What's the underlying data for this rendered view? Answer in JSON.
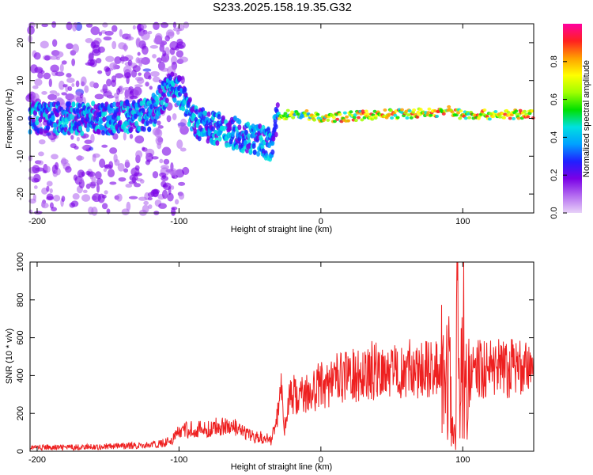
{
  "title": "S233.2025.158.19.35.G32",
  "chart_data": [
    {
      "type": "heatmap",
      "xlabel": "Height of straight line (km)",
      "ylabel": "Frequency (Hz)",
      "xlim": [
        -205,
        150
      ],
      "ylim": [
        -25,
        25
      ],
      "xticks": [
        -200,
        -100,
        0,
        100
      ],
      "yticks": [
        -20,
        -10,
        0,
        10,
        20
      ],
      "colorbar": {
        "label": "Normalized spectral amplitude",
        "range": [
          0,
          1
        ],
        "ticks": [
          "0.0",
          "0.2",
          "0.4",
          "0.6",
          "0.8"
        ],
        "colors": [
          "#e8d2f8",
          "#b46cf0",
          "#7a00e6",
          "#2020ff",
          "#00a0ff",
          "#00e0e0",
          "#00e000",
          "#a0ff00",
          "#ffff00",
          "#ffa000",
          "#ff2020",
          "#ff00a0"
        ]
      },
      "ridge": [
        {
          "x": -205,
          "y": 0
        },
        {
          "x": -150,
          "y": 0
        },
        {
          "x": -120,
          "y": 1
        },
        {
          "x": -105,
          "y": 9
        },
        {
          "x": -95,
          "y": 5
        },
        {
          "x": -90,
          "y": -1
        },
        {
          "x": -70,
          "y": -3
        },
        {
          "x": -50,
          "y": -5
        },
        {
          "x": -35,
          "y": -7
        },
        {
          "x": -30,
          "y": 1
        },
        {
          "x": -10,
          "y": 1
        },
        {
          "x": 0,
          "y": 0
        },
        {
          "x": 40,
          "y": 1
        },
        {
          "x": 80,
          "y": 1.5
        },
        {
          "x": 90,
          "y": 2
        },
        {
          "x": 100,
          "y": 1
        },
        {
          "x": 150,
          "y": 1
        }
      ]
    },
    {
      "type": "line",
      "xlabel": "Height of straight line (km)",
      "ylabel": "SNR (10 * v/v)",
      "xlim": [
        -205,
        150
      ],
      "ylim": [
        0,
        1000
      ],
      "xticks": [
        -200,
        -100,
        0,
        100
      ],
      "yticks": [
        0,
        200,
        400,
        600,
        800,
        1000
      ],
      "color": "#ee2020",
      "series": [
        {
          "x": [
            -205,
            -180,
            -150,
            -130,
            -115,
            -105,
            -100,
            -90,
            -80,
            -70,
            -60,
            -50,
            -40,
            -35,
            -30,
            -28,
            -26,
            -25,
            -22,
            -20,
            -15,
            -10,
            -5,
            0,
            10,
            20,
            30,
            40,
            50,
            60,
            70,
            80,
            85,
            88,
            90,
            92,
            95,
            96,
            98,
            100,
            103,
            105,
            110,
            120,
            130,
            140,
            150
          ],
          "y": [
            20,
            20,
            25,
            30,
            35,
            60,
            100,
            120,
            110,
            140,
            120,
            80,
            70,
            60,
            200,
            430,
            130,
            150,
            270,
            300,
            280,
            300,
            320,
            350,
            380,
            400,
            420,
            430,
            440,
            440,
            440,
            420,
            450,
            300,
            500,
            200,
            30,
            900,
            50,
            700,
            300,
            420,
            440,
            430,
            440,
            430,
            420
          ]
        }
      ]
    }
  ]
}
